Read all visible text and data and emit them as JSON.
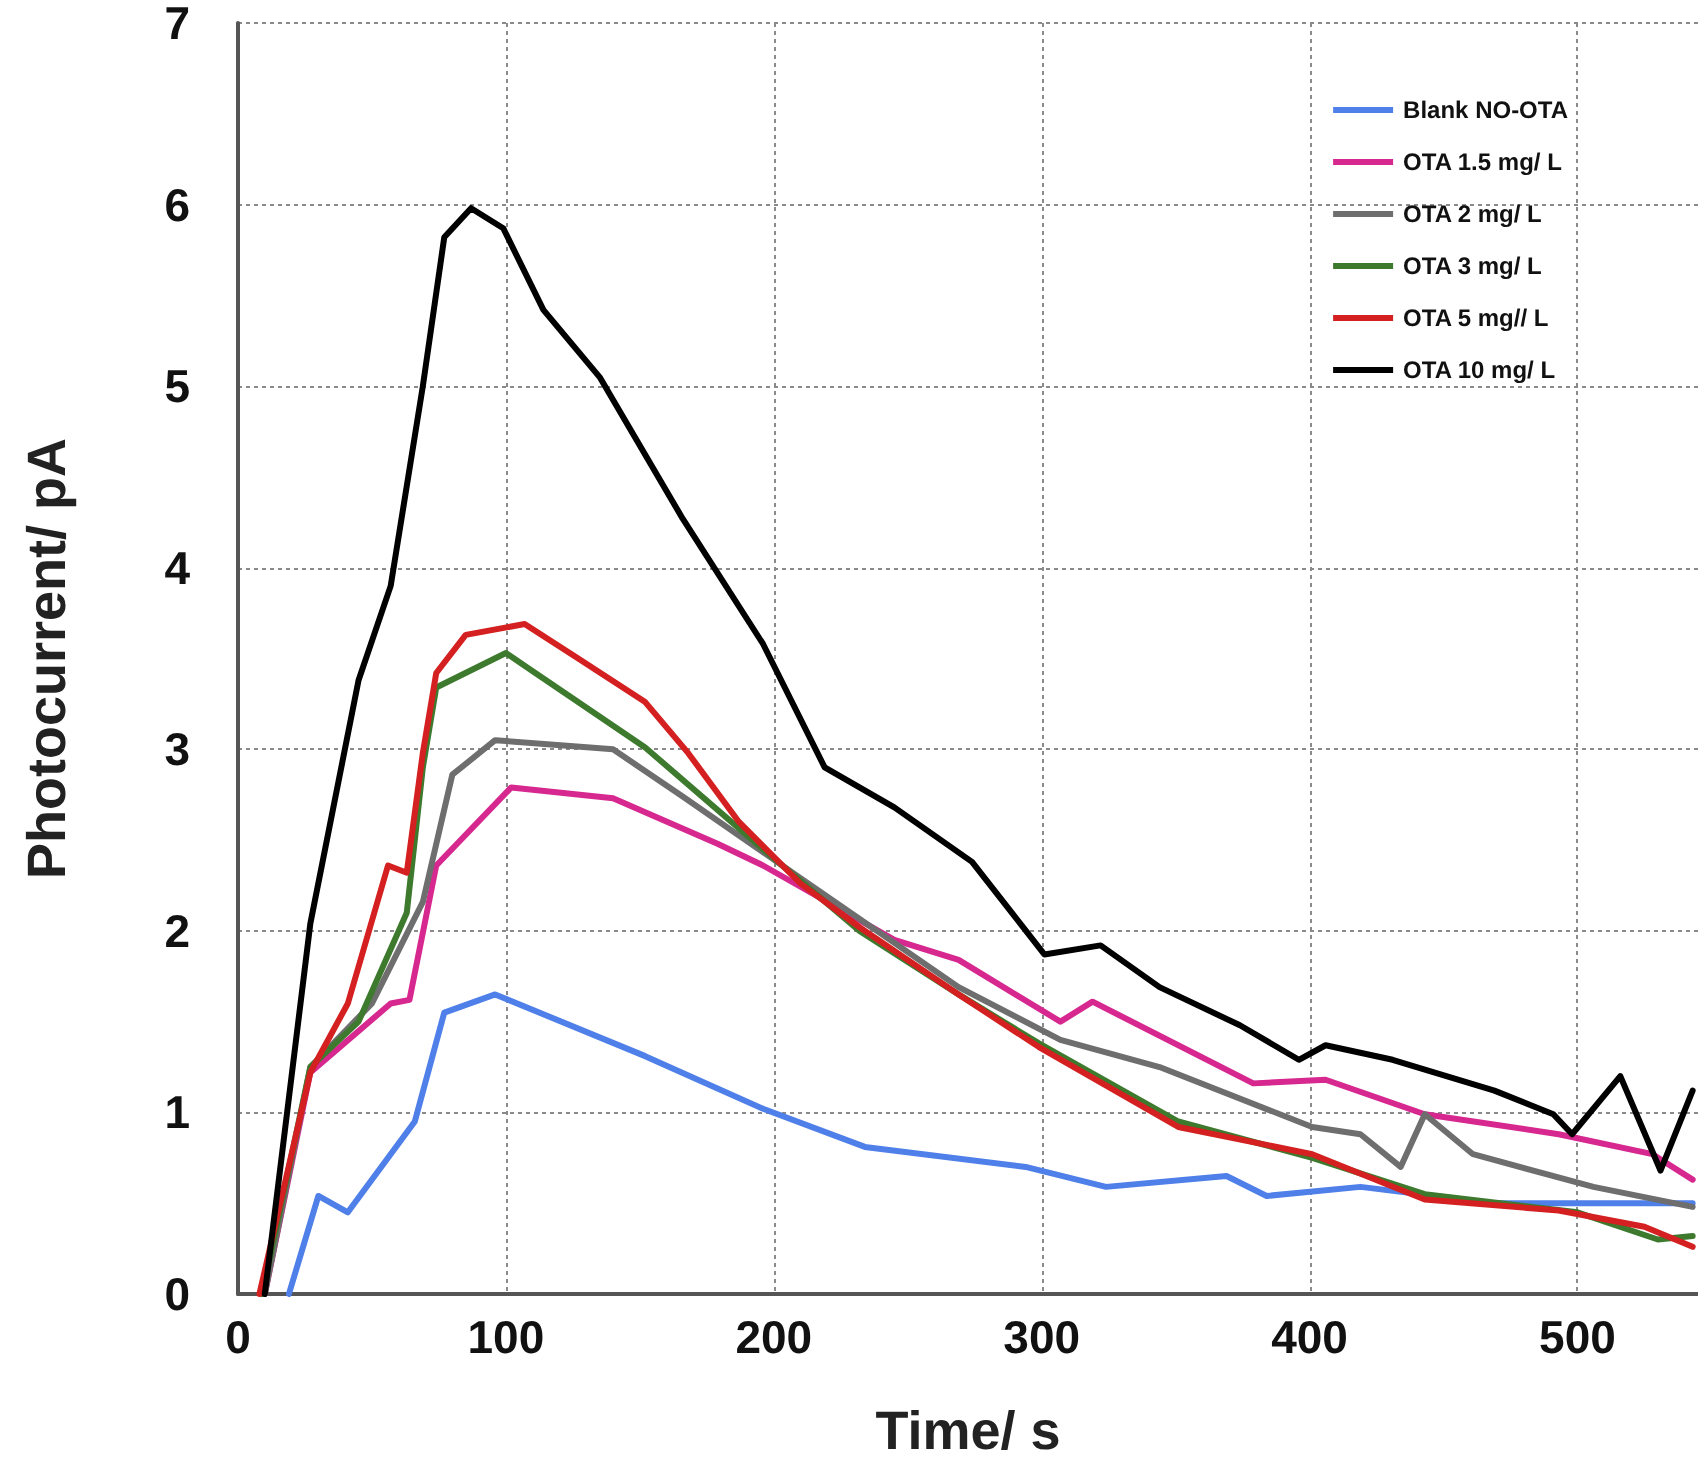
{
  "chart_data": {
    "type": "line",
    "xlabel": "Time/ s",
    "ylabel": "Photocurrent/ pA",
    "xlim": [
      0,
      545
    ],
    "ylim": [
      0,
      7
    ],
    "xticks": [
      0,
      100,
      200,
      300,
      400,
      500
    ],
    "yticks": [
      0,
      1,
      2,
      3,
      4,
      5,
      6,
      7
    ],
    "grid": true,
    "legend": "top right",
    "marker": "none",
    "line_style": "solid",
    "series": [
      {
        "name": "Blank NO-OTA",
        "color": "#4f7fe8",
        "x": [
          19,
          30,
          41,
          66,
          77,
          96,
          152,
          196,
          234,
          294,
          324,
          369,
          384,
          419,
          469,
          543
        ],
        "values": [
          0,
          0.54,
          0.45,
          0.95,
          1.55,
          1.65,
          1.31,
          1.02,
          0.81,
          0.7,
          0.59,
          0.65,
          0.54,
          0.59,
          0.5,
          0.5
        ]
      },
      {
        "name": "OTA 1.5 mg/ L",
        "color": "#d6288f",
        "x": [
          10,
          27,
          57,
          64,
          74,
          102,
          140,
          179,
          196,
          245,
          269,
          307,
          319,
          379,
          406,
          443,
          493,
          528,
          543
        ],
        "values": [
          0,
          1.22,
          1.6,
          1.62,
          2.36,
          2.79,
          2.73,
          2.48,
          2.36,
          1.95,
          1.84,
          1.5,
          1.61,
          1.16,
          1.18,
          0.99,
          0.88,
          0.77,
          0.63
        ]
      },
      {
        "name": "OTA 2 mg/ L",
        "color": "#6e6e6e",
        "x": [
          10,
          27,
          50,
          69,
          80,
          96,
          140,
          166,
          210,
          269,
          307,
          344,
          401,
          419,
          434,
          443,
          461,
          506,
          543
        ],
        "values": [
          0,
          1.25,
          1.6,
          2.16,
          2.86,
          3.05,
          3.0,
          2.74,
          2.29,
          1.69,
          1.4,
          1.25,
          0.92,
          0.88,
          0.7,
          0.99,
          0.77,
          0.59,
          0.48
        ]
      },
      {
        "name": "OTA 3 mg/ L",
        "color": "#3d7a2e",
        "x": [
          9,
          27,
          45,
          63,
          69,
          74,
          100,
          107,
          152,
          196,
          232,
          269,
          299,
          351,
          401,
          443,
          500,
          530,
          543
        ],
        "values": [
          0,
          1.25,
          1.5,
          2.1,
          2.9,
          3.34,
          3.53,
          3.46,
          3.01,
          2.45,
          2.0,
          1.65,
          1.38,
          0.95,
          0.75,
          0.55,
          0.45,
          0.3,
          0.32
        ]
      },
      {
        "name": "OTA 5 mg// L",
        "color": "#d42020",
        "x": [
          8,
          27,
          41,
          56,
          63,
          69,
          74,
          85,
          107,
          127,
          152,
          168,
          187,
          210,
          232,
          269,
          299,
          351,
          401,
          443,
          493,
          525,
          543
        ],
        "values": [
          0,
          1.22,
          1.6,
          2.36,
          2.32,
          2.98,
          3.42,
          3.63,
          3.69,
          3.5,
          3.26,
          2.98,
          2.6,
          2.26,
          2.02,
          1.65,
          1.36,
          0.92,
          0.77,
          0.52,
          0.46,
          0.37,
          0.26
        ]
      },
      {
        "name": "OTA 10 mg/ L",
        "color": "#000000",
        "x": [
          10,
          27,
          45,
          57,
          69,
          77,
          87,
          99,
          114,
          135,
          166,
          196,
          219,
          245,
          274,
          301,
          322,
          344,
          374,
          396,
          406,
          431,
          469,
          491,
          498,
          516,
          531,
          543
        ],
        "values": [
          0,
          2.04,
          3.38,
          3.9,
          5.0,
          5.82,
          5.98,
          5.87,
          5.42,
          5.05,
          4.27,
          3.58,
          2.9,
          2.68,
          2.38,
          1.87,
          1.92,
          1.69,
          1.48,
          1.29,
          1.37,
          1.29,
          1.12,
          0.99,
          0.88,
          1.2,
          0.68,
          1.12
        ]
      }
    ]
  }
}
